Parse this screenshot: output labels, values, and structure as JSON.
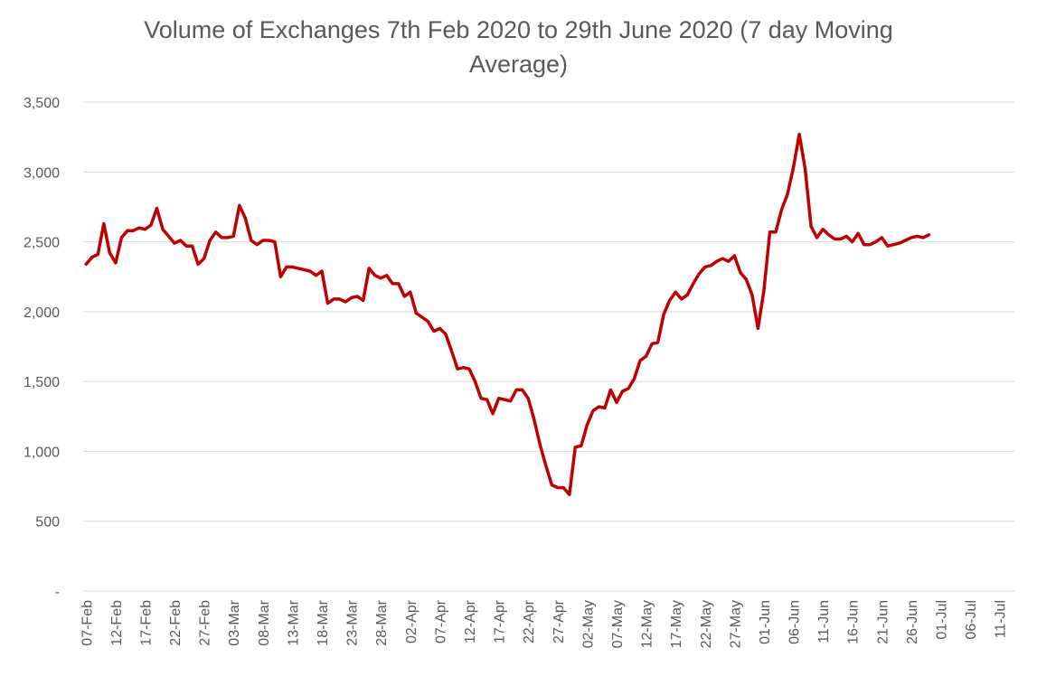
{
  "chart_data": {
    "type": "line",
    "title": "Volume of Exchanges 7th Feb 2020 to 29th June 2020 (7 day Moving Average)",
    "title_line1": "Volume of Exchanges 7th Feb 2020 to 29th June 2020 (7 day Moving",
    "title_line2": "Average)",
    "xlabel": "",
    "ylabel": "",
    "ylim": [
      0,
      3500
    ],
    "y_ticks": [
      0,
      500,
      1000,
      1500,
      2000,
      2500,
      3000,
      3500
    ],
    "y_tick_labels": [
      "-",
      "500",
      "1,000",
      "1,500",
      "2,000",
      "2,500",
      "3,000",
      "3,500"
    ],
    "x_tick_labels": [
      "07-Feb",
      "12-Feb",
      "17-Feb",
      "22-Feb",
      "27-Feb",
      "03-Mar",
      "08-Mar",
      "13-Mar",
      "18-Mar",
      "23-Mar",
      "28-Mar",
      "02-Apr",
      "07-Apr",
      "12-Apr",
      "17-Apr",
      "22-Apr",
      "27-Apr",
      "02-May",
      "07-May",
      "12-May",
      "17-May",
      "22-May",
      "27-May",
      "01-Jun",
      "06-Jun",
      "11-Jun",
      "16-Jun",
      "21-Jun",
      "26-Jun",
      "01-Jul",
      "06-Jul",
      "11-Jul"
    ],
    "x_start": "2020-02-07",
    "x_end": "2020-07-14",
    "grid": true,
    "series": [
      {
        "color": "#c00000",
        "x": [
          "2020-02-07",
          "2020-02-08",
          "2020-02-09",
          "2020-02-10",
          "2020-02-11",
          "2020-02-12",
          "2020-02-13",
          "2020-02-14",
          "2020-02-15",
          "2020-02-16",
          "2020-02-17",
          "2020-02-18",
          "2020-02-19",
          "2020-02-20",
          "2020-02-21",
          "2020-02-22",
          "2020-02-23",
          "2020-02-24",
          "2020-02-25",
          "2020-02-26",
          "2020-02-27",
          "2020-02-28",
          "2020-02-29",
          "2020-03-01",
          "2020-03-02",
          "2020-03-03",
          "2020-03-04",
          "2020-03-05",
          "2020-03-06",
          "2020-03-07",
          "2020-03-08",
          "2020-03-09",
          "2020-03-10",
          "2020-03-11",
          "2020-03-12",
          "2020-03-13",
          "2020-03-14",
          "2020-03-15",
          "2020-03-16",
          "2020-03-17",
          "2020-03-18",
          "2020-03-19",
          "2020-03-20",
          "2020-03-21",
          "2020-03-22",
          "2020-03-23",
          "2020-03-24",
          "2020-03-25",
          "2020-03-26",
          "2020-03-27",
          "2020-03-28",
          "2020-03-29",
          "2020-03-30",
          "2020-03-31",
          "2020-04-01",
          "2020-04-02",
          "2020-04-03",
          "2020-04-04",
          "2020-04-05",
          "2020-04-06",
          "2020-04-07",
          "2020-04-08",
          "2020-04-09",
          "2020-04-10",
          "2020-04-11",
          "2020-04-12",
          "2020-04-13",
          "2020-04-14",
          "2020-04-15",
          "2020-04-16",
          "2020-04-17",
          "2020-04-18",
          "2020-04-19",
          "2020-04-20",
          "2020-04-21",
          "2020-04-22",
          "2020-04-23",
          "2020-04-24",
          "2020-04-25",
          "2020-04-26",
          "2020-04-27",
          "2020-04-28",
          "2020-04-29",
          "2020-04-30",
          "2020-05-01",
          "2020-05-02",
          "2020-05-03",
          "2020-05-04",
          "2020-05-05",
          "2020-05-06",
          "2020-05-07",
          "2020-05-08",
          "2020-05-09",
          "2020-05-10",
          "2020-05-11",
          "2020-05-12",
          "2020-05-13",
          "2020-05-14",
          "2020-05-15",
          "2020-05-16",
          "2020-05-17",
          "2020-05-18",
          "2020-05-19",
          "2020-05-20",
          "2020-05-21",
          "2020-05-22",
          "2020-05-23",
          "2020-05-24",
          "2020-05-25",
          "2020-05-26",
          "2020-05-27",
          "2020-05-28",
          "2020-05-29",
          "2020-05-30",
          "2020-05-31",
          "2020-06-01",
          "2020-06-02",
          "2020-06-03",
          "2020-06-04",
          "2020-06-05",
          "2020-06-06",
          "2020-06-07",
          "2020-06-08",
          "2020-06-09",
          "2020-06-10",
          "2020-06-11",
          "2020-06-12",
          "2020-06-13",
          "2020-06-14",
          "2020-06-15",
          "2020-06-16",
          "2020-06-17",
          "2020-06-18",
          "2020-06-19",
          "2020-06-20",
          "2020-06-21",
          "2020-06-22",
          "2020-06-23",
          "2020-06-24",
          "2020-06-25",
          "2020-06-26",
          "2020-06-27",
          "2020-06-28",
          "2020-06-29"
        ],
        "y": [
          2340,
          2390,
          2410,
          2630,
          2420,
          2350,
          2530,
          2580,
          2580,
          2600,
          2590,
          2620,
          2740,
          2590,
          2540,
          2490,
          2510,
          2470,
          2470,
          2340,
          2380,
          2510,
          2570,
          2530,
          2530,
          2540,
          2760,
          2670,
          2510,
          2480,
          2510,
          2510,
          2500,
          2250,
          2320,
          2320,
          2310,
          2300,
          2290,
          2260,
          2290,
          2060,
          2090,
          2090,
          2070,
          2100,
          2110,
          2080,
          2310,
          2260,
          2240,
          2260,
          2200,
          2200,
          2110,
          2140,
          1990,
          1960,
          1930,
          1860,
          1880,
          1840,
          1720,
          1590,
          1600,
          1590,
          1500,
          1380,
          1370,
          1270,
          1380,
          1370,
          1360,
          1440,
          1440,
          1380,
          1230,
          1050,
          900,
          760,
          740,
          740,
          690,
          1030,
          1040,
          1190,
          1290,
          1320,
          1310,
          1440,
          1350,
          1430,
          1450,
          1520,
          1650,
          1680,
          1770,
          1780,
          1980,
          2080,
          2140,
          2090,
          2120,
          2200,
          2270,
          2320,
          2330,
          2360,
          2380,
          2360,
          2400,
          2280,
          2230,
          2120,
          1880,
          2150,
          2570,
          2570,
          2730,
          2840,
          3030,
          3270,
          3020,
          2610,
          2530,
          2590,
          2550,
          2520,
          2520,
          2540,
          2500,
          2560,
          2480,
          2480,
          2500,
          2530,
          2470,
          2480,
          2490,
          2510,
          2530,
          2540,
          2530,
          2550
        ]
      }
    ]
  }
}
